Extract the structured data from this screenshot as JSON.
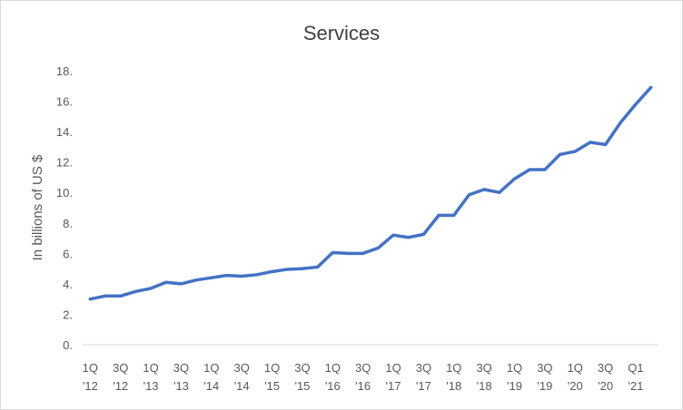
{
  "chart_data": {
    "type": "line",
    "title": "Services",
    "xlabel": "",
    "ylabel": "In billions of US $",
    "ylim": [
      0,
      18
    ],
    "yticks": [
      "0.",
      "2.",
      "4.",
      "6.",
      "8.",
      "10.",
      "12.",
      "14.",
      "16.",
      "18."
    ],
    "ytick_values": [
      0,
      2,
      4,
      6,
      8,
      10,
      12,
      14,
      16,
      18
    ],
    "grid": false,
    "legend": "none",
    "series_color": "#4472C4",
    "x": [
      "1Q '12",
      "2Q '12",
      "3Q '12",
      "4Q '12",
      "1Q '13",
      "2Q '13",
      "3Q '13",
      "4Q '13",
      "1Q '14",
      "2Q '14",
      "3Q '14",
      "4Q '14",
      "1Q '15",
      "2Q '15",
      "3Q '15",
      "4Q '15",
      "1Q '16",
      "2Q '16",
      "3Q '16",
      "4Q '16",
      "1Q '17",
      "2Q '17",
      "3Q '17",
      "4Q '17",
      "1Q '18",
      "2Q '18",
      "3Q '18",
      "4Q '18",
      "1Q '19",
      "2Q '19",
      "3Q '19",
      "4Q '19",
      "1Q '20",
      "2Q '20",
      "3Q '20",
      "4Q '20",
      "Q1 '21",
      "Q2 '21"
    ],
    "xtick_labels": [
      {
        "index": 0,
        "line1": "1Q",
        "line2": "'12"
      },
      {
        "index": 2,
        "line1": "3Q",
        "line2": "'12"
      },
      {
        "index": 4,
        "line1": "1Q",
        "line2": "'13"
      },
      {
        "index": 6,
        "line1": "3Q",
        "line2": "'13"
      },
      {
        "index": 8,
        "line1": "1Q",
        "line2": "'14"
      },
      {
        "index": 10,
        "line1": "3Q",
        "line2": "'14"
      },
      {
        "index": 12,
        "line1": "1Q",
        "line2": "'15"
      },
      {
        "index": 14,
        "line1": "3Q",
        "line2": "'15"
      },
      {
        "index": 16,
        "line1": "1Q",
        "line2": "'16"
      },
      {
        "index": 18,
        "line1": "3Q",
        "line2": "'16"
      },
      {
        "index": 20,
        "line1": "1Q",
        "line2": "'17"
      },
      {
        "index": 22,
        "line1": "3Q",
        "line2": "'17"
      },
      {
        "index": 24,
        "line1": "1Q",
        "line2": "'18"
      },
      {
        "index": 26,
        "line1": "3Q",
        "line2": "'18"
      },
      {
        "index": 28,
        "line1": "1Q",
        "line2": "'19"
      },
      {
        "index": 30,
        "line1": "3Q",
        "line2": "'19"
      },
      {
        "index": 32,
        "line1": "1Q",
        "line2": "'20"
      },
      {
        "index": 34,
        "line1": "3Q",
        "line2": "'20"
      },
      {
        "index": 36,
        "line1": "Q1",
        "line2": "'21"
      }
    ],
    "series": [
      {
        "values": [
          3.0,
          3.2,
          3.2,
          3.5,
          3.7,
          4.1,
          4.0,
          4.25,
          4.4,
          4.55,
          4.5,
          4.6,
          4.8,
          4.95,
          5.0,
          5.1,
          6.05,
          6.0,
          6.0,
          6.35,
          7.2,
          7.05,
          7.25,
          8.5,
          8.5,
          9.85,
          10.2,
          10.0,
          10.9,
          11.5,
          11.5,
          12.5,
          12.7,
          13.3,
          13.15,
          14.6,
          15.8,
          16.9
        ]
      }
    ]
  }
}
